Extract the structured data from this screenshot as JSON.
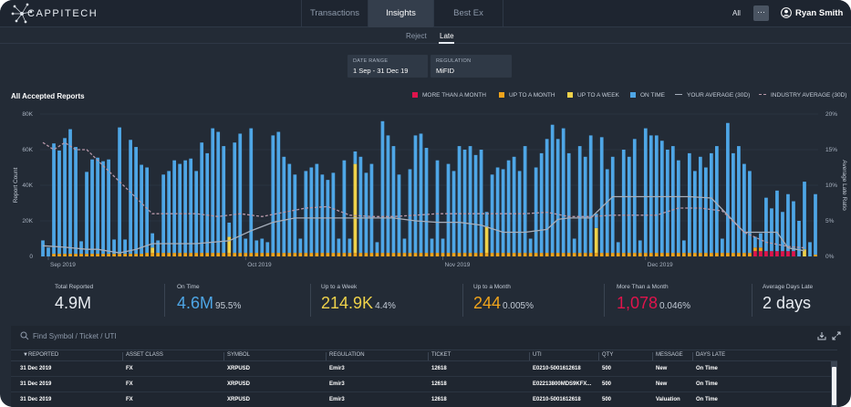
{
  "app": {
    "brand": "CAPPITECH"
  },
  "nav": {
    "tabs": [
      {
        "label": "Transactions",
        "active": false
      },
      {
        "label": "Insights",
        "active": true
      },
      {
        "label": "Best Ex",
        "active": false
      }
    ],
    "scope": "All",
    "more_label": "···",
    "user_name": "Ryan Smith"
  },
  "subtabs": [
    {
      "label": "Reject",
      "active": false
    },
    {
      "label": "Late",
      "active": true
    }
  ],
  "filters": {
    "date_range": {
      "label": "DATE RANGE",
      "value": "1 Sep - 31 Dec 19"
    },
    "regulation": {
      "label": "REGULATION",
      "value": "MiFID"
    }
  },
  "chart": {
    "title": "All Accepted Reports",
    "legend": [
      {
        "label": "MORE THAN A MONTH",
        "color": "#e0144c",
        "kind": "box"
      },
      {
        "label": "UP TO A MONTH",
        "color": "#f0a41c",
        "kind": "box"
      },
      {
        "label": "UP TO A WEEK",
        "color": "#efd24a",
        "kind": "box"
      },
      {
        "label": "ON TIME",
        "color": "#4ea6e6",
        "kind": "box"
      },
      {
        "label": "YOUR AVERAGE (30D)",
        "color": "#a6aebb",
        "kind": "line"
      },
      {
        "label": "INDUSTRY AVERAGE (30D)",
        "color": "#b697a8",
        "kind": "dash"
      }
    ]
  },
  "chart_data": {
    "type": "bar",
    "title": "All Accepted Reports",
    "ylabel": "Report Count",
    "y2label": "Average Late Ratio",
    "ylim": [
      0,
      80000
    ],
    "y2lim": [
      0,
      20
    ],
    "yticks": [
      "0",
      "20K",
      "40K",
      "60K",
      "80K"
    ],
    "y2ticks": [
      "0%",
      "5%",
      "10%",
      "15%",
      "20%"
    ],
    "xticks": [
      "Sep 2019",
      "Oct 2019",
      "Nov 2019",
      "Dec 2019"
    ],
    "xtick_index": [
      1,
      37,
      73,
      110
    ],
    "grid": true,
    "stacked": true,
    "series": [
      {
        "name": "ON TIME",
        "color": "#4ea6e6",
        "values": [
          9000,
          5000,
          62000,
          58000,
          65000,
          70000,
          60000,
          7000,
          46000,
          53000,
          54000,
          52000,
          53000,
          8000,
          71000,
          8000,
          64000,
          60000,
          50000,
          48000,
          8000,
          7000,
          44000,
          46000,
          52000,
          50000,
          52000,
          53000,
          46000,
          62000,
          56000,
          70000,
          68000,
          60000,
          8000,
          62000,
          67000,
          8000,
          70000,
          7000,
          8000,
          6000,
          66000,
          68000,
          54000,
          50000,
          44000,
          8000,
          46000,
          48000,
          50000,
          44000,
          41000,
          45000,
          8000,
          52000,
          8000,
          7000,
          54000,
          45000,
          50000,
          6000,
          74000,
          66000,
          60000,
          44000,
          8000,
          47000,
          66000,
          67000,
          59000,
          8000,
          52000,
          8000,
          50000,
          46000,
          60000,
          58000,
          60000,
          55000,
          58000,
          8000,
          44000,
          48000,
          47000,
          52000,
          54000,
          46000,
          60000,
          8000,
          48000,
          56000,
          64000,
          72000,
          64000,
          70000,
          56000,
          8000,
          60000,
          54000,
          66000,
          8000,
          65000,
          47000,
          54000,
          6000,
          58000,
          54000,
          64000,
          7000,
          70000,
          66000,
          66000,
          63000,
          58000,
          60000,
          52000,
          7000,
          56000,
          46000,
          54000,
          48000,
          56000,
          60000,
          8000,
          73000,
          56000,
          60000,
          50000,
          46000,
          6000,
          8000,
          30000,
          24000,
          34000,
          22000,
          32000,
          28000,
          20000,
          38000,
          8000,
          34000
        ]
      },
      {
        "name": "UP TO A WEEK",
        "color": "#efd24a",
        "values": [
          0,
          0,
          0,
          0,
          0,
          0,
          0,
          0,
          0,
          0,
          0,
          0,
          0,
          0,
          0,
          0,
          0,
          0,
          0,
          0,
          3000,
          0,
          0,
          0,
          0,
          0,
          0,
          0,
          0,
          0,
          0,
          0,
          0,
          0,
          9000,
          0,
          0,
          0,
          0,
          0,
          0,
          0,
          0,
          0,
          0,
          0,
          0,
          0,
          0,
          0,
          0,
          0,
          0,
          0,
          0,
          0,
          0,
          50000,
          0,
          0,
          0,
          0,
          0,
          0,
          0,
          0,
          0,
          0,
          0,
          0,
          0,
          0,
          0,
          0,
          0,
          0,
          0,
          0,
          0,
          0,
          0,
          15000,
          0,
          0,
          0,
          0,
          0,
          0,
          0,
          0,
          0,
          0,
          0,
          0,
          0,
          0,
          0,
          0,
          0,
          0,
          0,
          14000,
          0,
          0,
          0,
          0,
          0,
          0,
          0,
          0,
          0,
          0,
          0,
          0,
          0,
          0,
          0,
          0,
          0,
          0,
          0,
          0,
          0,
          0,
          0,
          0,
          0,
          0,
          0,
          0,
          0,
          0,
          0,
          0,
          0,
          0,
          0,
          0,
          0,
          4000
        ]
      },
      {
        "name": "UP TO A MONTH",
        "color": "#f0a41c",
        "values": [
          0,
          0,
          1500,
          1500,
          1500,
          1500,
          1500,
          1500,
          1500,
          1500,
          1500,
          1500,
          1500,
          1500,
          1500,
          1500,
          1500,
          1500,
          1500,
          2000,
          2000,
          2000,
          2000,
          2000,
          2000,
          2000,
          2000,
          2000,
          2000,
          2000,
          2000,
          2000,
          2000,
          2000,
          2000,
          2000,
          2000,
          2000,
          2000,
          2000,
          2000,
          2000,
          2000,
          2000,
          2000,
          2000,
          2000,
          2000,
          2000,
          2000,
          2000,
          2000,
          2000,
          2000,
          2000,
          2000,
          2000,
          2000,
          2000,
          2000,
          2000,
          2000,
          2000,
          2000,
          2000,
          2000,
          2000,
          2000,
          2000,
          2000,
          2000,
          2000,
          2000,
          2000,
          2000,
          2000,
          2000,
          2000,
          2000,
          2000,
          2000,
          2000,
          2000,
          2000,
          2000,
          2000,
          2000,
          2000,
          2000,
          2000,
          2000,
          2000,
          2000,
          2000,
          2000,
          2000,
          2000,
          2000,
          2000,
          2000,
          2000,
          2000,
          2000,
          2000,
          2000,
          2000,
          2000,
          2000,
          2000,
          2000,
          2000,
          2000,
          2000,
          2000,
          2000,
          2000,
          2000,
          2000,
          2000,
          2000,
          2000,
          2000,
          2000,
          2000,
          2000,
          2000,
          2000,
          2000,
          2000,
          2000,
          2000,
          2000,
          0,
          0,
          0,
          0,
          0,
          0,
          0,
          0,
          0,
          1000
        ]
      },
      {
        "name": "MORE THAN A MONTH",
        "color": "#e0144c",
        "values": [
          0,
          0,
          0,
          0,
          0,
          0,
          0,
          0,
          0,
          0,
          0,
          0,
          0,
          0,
          0,
          0,
          0,
          0,
          0,
          0,
          0,
          0,
          0,
          0,
          0,
          0,
          0,
          0,
          0,
          0,
          0,
          0,
          0,
          0,
          0,
          0,
          0,
          0,
          0,
          0,
          0,
          0,
          0,
          0,
          0,
          0,
          0,
          0,
          0,
          0,
          0,
          0,
          0,
          0,
          0,
          0,
          0,
          0,
          0,
          0,
          0,
          0,
          0,
          0,
          0,
          0,
          0,
          0,
          0,
          0,
          0,
          0,
          0,
          0,
          0,
          0,
          0,
          0,
          0,
          0,
          0,
          0,
          0,
          0,
          0,
          0,
          0,
          0,
          0,
          0,
          0,
          0,
          0,
          0,
          0,
          0,
          0,
          0,
          0,
          0,
          0,
          0,
          0,
          0,
          0,
          0,
          0,
          0,
          0,
          0,
          0,
          0,
          0,
          0,
          0,
          0,
          0,
          0,
          0,
          0,
          0,
          0,
          0,
          0,
          0,
          0,
          0,
          0,
          0,
          0,
          3000,
          3000,
          3000,
          3000,
          3000,
          3000,
          3000,
          3000,
          0,
          0,
          0,
          0
        ]
      }
    ],
    "lines": [
      {
        "name": "YOUR AVERAGE (30D)",
        "axis": "right",
        "color": "#a6aebb",
        "dash": false,
        "x": [
          0,
          4,
          8,
          10,
          14,
          17,
          20,
          24,
          28,
          34,
          38,
          42,
          46,
          52,
          56,
          58,
          60,
          64,
          68,
          72,
          76,
          80,
          84,
          88,
          92,
          94,
          96,
          100,
          104,
          110,
          112,
          116,
          118,
          122,
          128,
          130,
          134,
          136,
          139
        ],
        "y": [
          1.5,
          1.3,
          1.0,
          1.0,
          0.5,
          1.0,
          1.8,
          1.8,
          1.8,
          2.2,
          3.6,
          4.8,
          5.4,
          5.4,
          5.4,
          5.4,
          5.4,
          5.4,
          5.0,
          4.8,
          4.8,
          4.4,
          3.4,
          3.4,
          3.8,
          5.2,
          5.4,
          5.4,
          8.4,
          8.4,
          8.4,
          8.4,
          8.4,
          8.2,
          3.4,
          3.4,
          3.4,
          1.2,
          0.8
        ]
      },
      {
        "name": "INDUSTRY AVERAGE (30D)",
        "axis": "right",
        "color": "#b697a8",
        "dash": true,
        "x": [
          0,
          2,
          4,
          6,
          8,
          12,
          16,
          20,
          24,
          28,
          32,
          36,
          40,
          44,
          48,
          52,
          56,
          60,
          64,
          68,
          72,
          76,
          80,
          84,
          88,
          92,
          96,
          100,
          104,
          108,
          112,
          116,
          120,
          124,
          128,
          132,
          136,
          139
        ],
        "y": [
          16,
          15,
          16,
          15,
          15,
          12,
          9,
          6,
          6,
          6,
          5.6,
          6,
          5.6,
          6.2,
          6.8,
          7,
          5.8,
          5.6,
          5.6,
          5.8,
          6,
          6,
          6,
          6,
          6,
          6.2,
          5.6,
          5.6,
          5.8,
          5.8,
          5.8,
          6.8,
          6.8,
          6.4,
          3.4,
          2,
          1.4,
          1.2
        ]
      }
    ]
  },
  "stats": [
    {
      "label": "Total Reported",
      "value": "4.9M",
      "suffix": "",
      "color": "#e8ecf1"
    },
    {
      "label": "On Time",
      "value": "4.6M",
      "suffix": "95.5%",
      "color": "#4ea6e6"
    },
    {
      "label": "Up to a Week",
      "value": "214.9K",
      "suffix": "4.4%",
      "color": "#efd24a"
    },
    {
      "label": "Up to a Month",
      "value": "244",
      "suffix": "0.005%",
      "color": "#f0a41c"
    },
    {
      "label": "More Than a Month",
      "value": "1,078",
      "suffix": "0.046%",
      "color": "#e0144c"
    },
    {
      "label": "Average Days Late",
      "value": "2 days",
      "suffix": "",
      "color": "#e8ecf1"
    }
  ],
  "table": {
    "search_placeholder": "Find Symbol / Ticket / UTI",
    "columns": [
      "▼REPORTED",
      "ASSET CLASS",
      "SYMBOL",
      "REGULATION",
      "TICKET",
      "UTI",
      "QTY",
      "MESSAGE",
      "DAYS LATE"
    ],
    "rows": [
      [
        "31 Dec 2019",
        "FX",
        "XRPUSD",
        "Emir3",
        "12618",
        "E0210-5001612618",
        "500",
        "New",
        "On Time"
      ],
      [
        "31 Dec 2019",
        "FX",
        "XRPUSD",
        "Emir3",
        "12618",
        "E02213800MDS9KFX...",
        "500",
        "New",
        "On Time"
      ],
      [
        "31 Dec 2019",
        "FX",
        "XRPUSD",
        "Emir3",
        "12618",
        "E0210-5001612618",
        "500",
        "Valuation",
        "On Time"
      ]
    ]
  }
}
